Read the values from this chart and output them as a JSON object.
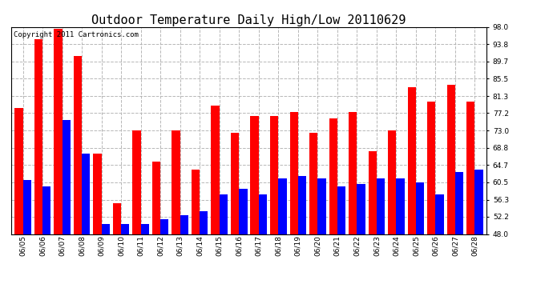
{
  "title": "Outdoor Temperature Daily High/Low 20110629",
  "copyright": "Copyright 2011 Cartronics.com",
  "dates": [
    "06/05",
    "06/06",
    "06/07",
    "06/08",
    "06/09",
    "06/10",
    "06/11",
    "06/12",
    "06/13",
    "06/14",
    "06/15",
    "06/16",
    "06/17",
    "06/18",
    "06/19",
    "06/20",
    "06/21",
    "06/22",
    "06/23",
    "06/24",
    "06/25",
    "06/26",
    "06/27",
    "06/28"
  ],
  "highs": [
    78.5,
    95.0,
    97.5,
    91.0,
    67.5,
    55.5,
    73.0,
    65.5,
    73.0,
    63.5,
    79.0,
    72.5,
    76.5,
    76.5,
    77.5,
    72.5,
    76.0,
    77.5,
    68.0,
    73.0,
    83.5,
    80.0,
    84.0,
    80.0
  ],
  "lows": [
    61.0,
    59.5,
    75.5,
    67.5,
    50.5,
    50.5,
    50.5,
    51.5,
    52.5,
    53.5,
    57.5,
    59.0,
    57.5,
    61.5,
    62.0,
    61.5,
    59.5,
    60.0,
    61.5,
    61.5,
    60.5,
    57.5,
    63.0,
    63.5
  ],
  "high_color": "#ff0000",
  "low_color": "#0000ff",
  "bg_color": "#ffffff",
  "grid_color": "#b0b0b0",
  "ymin": 48.0,
  "ymax": 98.0,
  "yticks": [
    48.0,
    52.2,
    56.3,
    60.5,
    64.7,
    68.8,
    73.0,
    77.2,
    81.3,
    85.5,
    89.7,
    93.8,
    98.0
  ],
  "title_fontsize": 11,
  "copyright_fontsize": 6.5,
  "tick_fontsize": 6.5,
  "bar_width": 0.42
}
